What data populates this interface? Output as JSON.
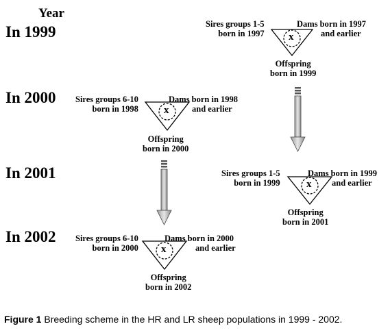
{
  "header": {
    "title": "Year"
  },
  "rows": [
    {
      "year": "In 1999",
      "sires": [
        "Sires groups 1-5",
        "born in 1997"
      ],
      "dams": [
        "Dams born in 1997",
        "and earlier"
      ],
      "cross": "x",
      "offspring": [
        "Offspring",
        "born in 1999"
      ]
    },
    {
      "year": "In 2000",
      "sires": [
        "Sires groups 6-10",
        "born in 1998"
      ],
      "dams": [
        "Dams born in 1998",
        "and earlier"
      ],
      "cross": "x",
      "offspring": [
        "Offspring",
        "born in 2000"
      ]
    },
    {
      "year": "In 2001",
      "sires": [
        "Sires groups 1-5",
        "born in 1999"
      ],
      "dams": [
        "Dams born in 1999",
        "and earlier"
      ],
      "cross": "x",
      "offspring": [
        "Offspring",
        "born in 2001"
      ]
    },
    {
      "year": "In 2002",
      "sires": [
        "Sires groups 6-10",
        "born in 2000"
      ],
      "dams": [
        "Dams born in  2000",
        "and earlier"
      ],
      "cross": "x",
      "offspring": [
        "Offspring",
        "born in 2002"
      ]
    }
  ],
  "caption": {
    "label": "Figure 1",
    "text": " Breeding scheme in the HR and LR sheep populations in 1999 - 2002."
  }
}
